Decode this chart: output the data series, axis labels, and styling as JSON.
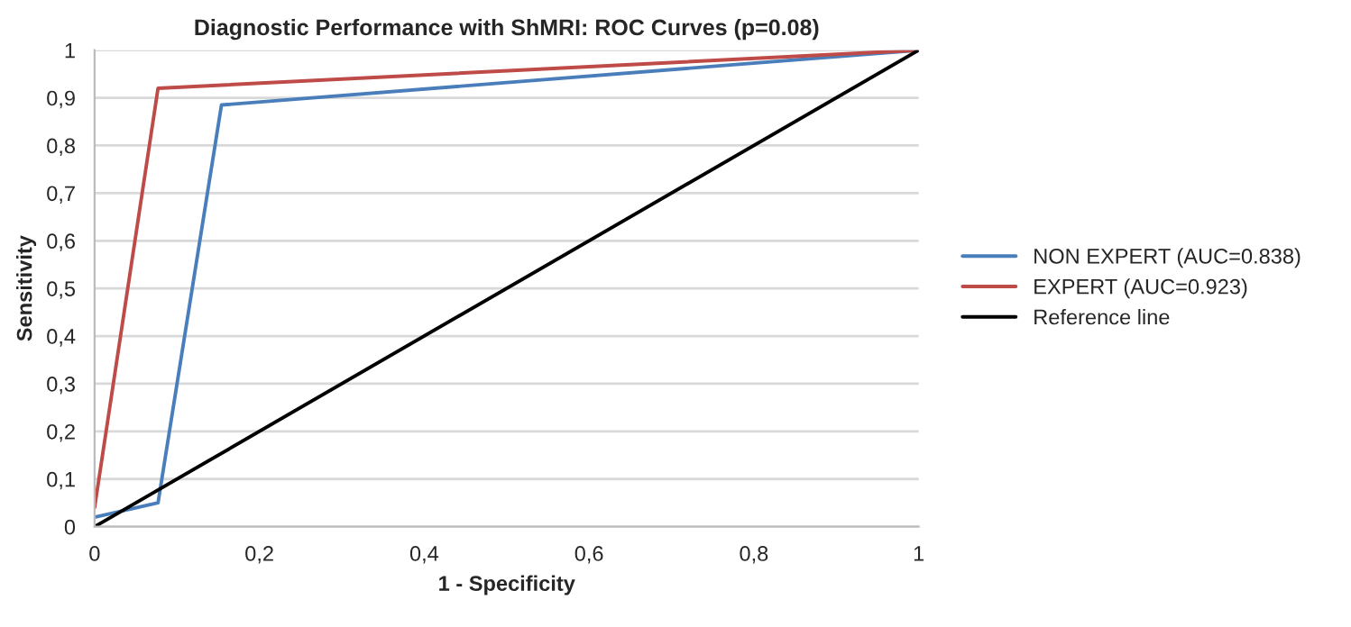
{
  "chart_data": {
    "type": "line",
    "title": "Diagnostic Performance with ShMRI: ROC Curves (p=0.08)",
    "xlabel": "1 - Specificity",
    "ylabel": "Sensitivity",
    "series": [
      {
        "name": "NON EXPERT (AUC=0.838)",
        "color": "#4a7ebb",
        "x": [
          0,
          0.077,
          0.154,
          1
        ],
        "values": [
          0.02,
          0.05,
          0.885,
          1
        ]
      },
      {
        "name": "EXPERT (AUC=0.923)",
        "color": "#be4b48",
        "x": [
          0,
          0.077,
          1
        ],
        "values": [
          0.04,
          0.92,
          1
        ]
      },
      {
        "name": "Reference line",
        "color": "#000000",
        "x": [
          0,
          1
        ],
        "values": [
          0,
          1
        ]
      }
    ],
    "xlim": [
      0,
      1
    ],
    "ylim": [
      0,
      1
    ],
    "xticks": [
      0,
      {
        "value": 0.2,
        "label": "0,2"
      },
      {
        "value": 0.4,
        "label": "0,4"
      },
      {
        "value": 0.6,
        "label": "0,6"
      },
      {
        "value": 0.8,
        "label": "0,8"
      },
      1
    ],
    "yticks": [
      0,
      {
        "value": 0.1,
        "label": "0,1"
      },
      {
        "value": 0.2,
        "label": "0,2"
      },
      {
        "value": 0.3,
        "label": "0,3"
      },
      {
        "value": 0.4,
        "label": "0,4"
      },
      {
        "value": 0.5,
        "label": "0,5"
      },
      {
        "value": 0.6,
        "label": "0,6"
      },
      {
        "value": 0.7,
        "label": "0,7"
      },
      {
        "value": 0.8,
        "label": "0,8"
      },
      {
        "value": 0.9,
        "label": "0,9"
      },
      1
    ],
    "grid": "y",
    "legend": "right",
    "marker": "none",
    "line_style": "solid"
  }
}
